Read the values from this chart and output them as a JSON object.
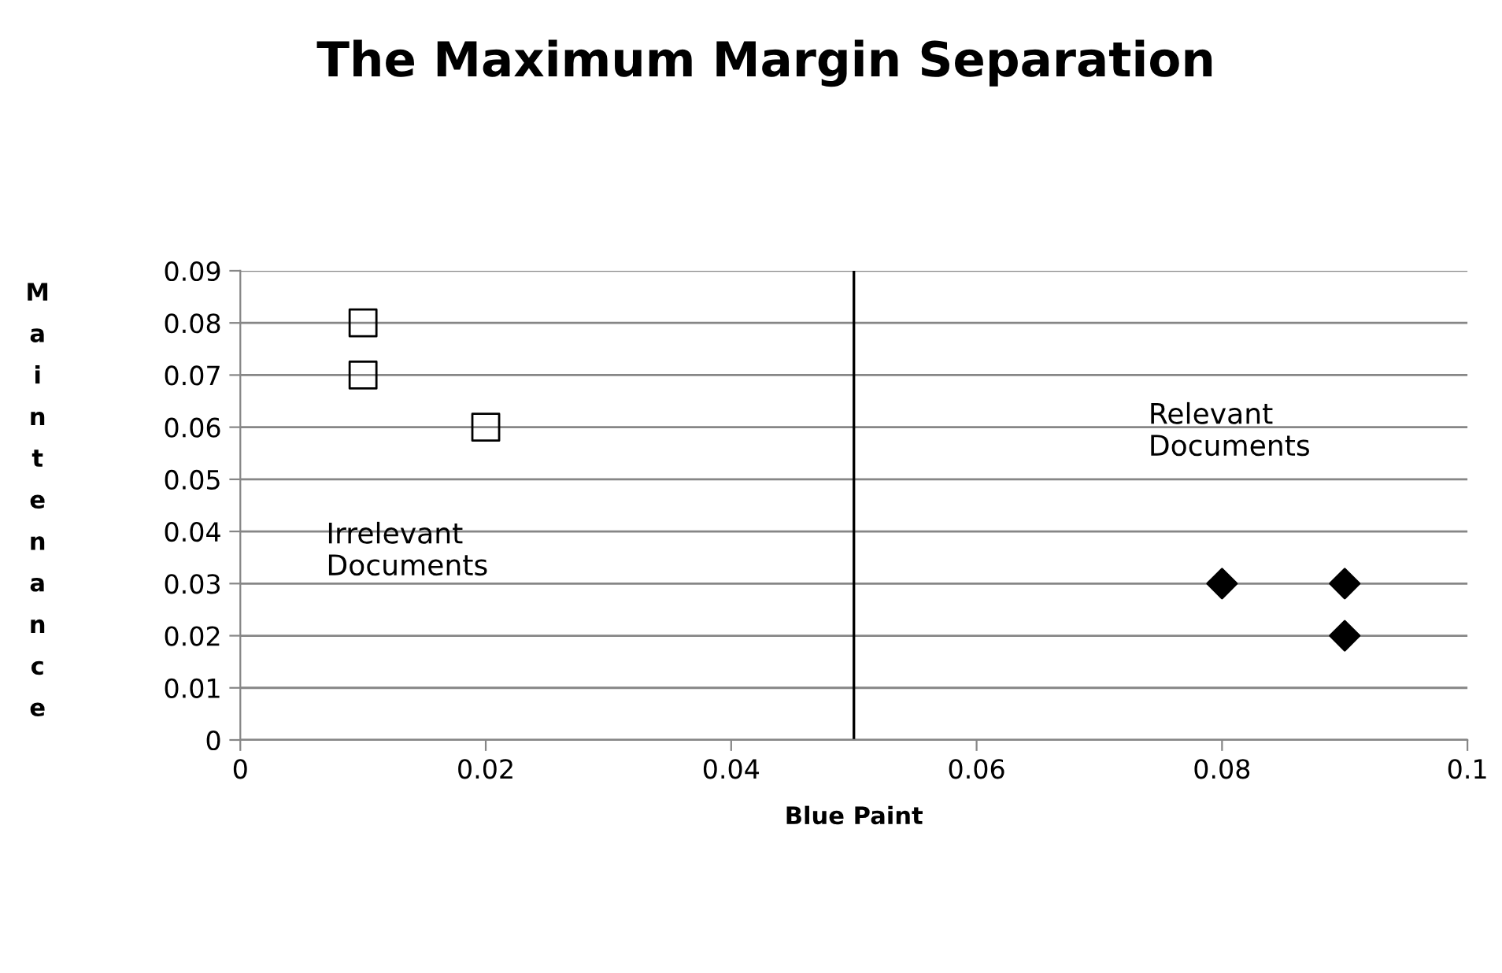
{
  "chart_data": {
    "type": "scatter",
    "title": "The Maximum Margin Separation",
    "xlabel": "Blue Paint",
    "ylabel": "Maintenance",
    "series": [
      {
        "marker": "square",
        "color": "#000000",
        "x": [
          0.01,
          0.01,
          0.02
        ],
        "values": [
          0.08,
          0.07,
          0.06
        ]
      },
      {
        "marker": "diamond",
        "color": "#000000",
        "x": [
          0.08,
          0.09,
          0.09
        ],
        "values": [
          0.03,
          0.03,
          0.02
        ]
      }
    ],
    "xlim": [
      0,
      0.1
    ],
    "xticks": [
      0,
      0.02,
      0.04,
      0.06,
      0.08,
      0.1
    ],
    "ylim": [
      0,
      0.09
    ],
    "yticks": [
      0,
      0.01,
      0.02,
      0.03,
      0.04,
      0.05,
      0.06,
      0.07,
      0.08,
      0.09
    ],
    "grid": "y",
    "ref_lines": [
      {
        "axis": "x",
        "value": 0.05,
        "color": "#000000"
      }
    ],
    "annotations": [
      "Irrelevant\nDocuments",
      "Relevant\nDocuments"
    ]
  }
}
